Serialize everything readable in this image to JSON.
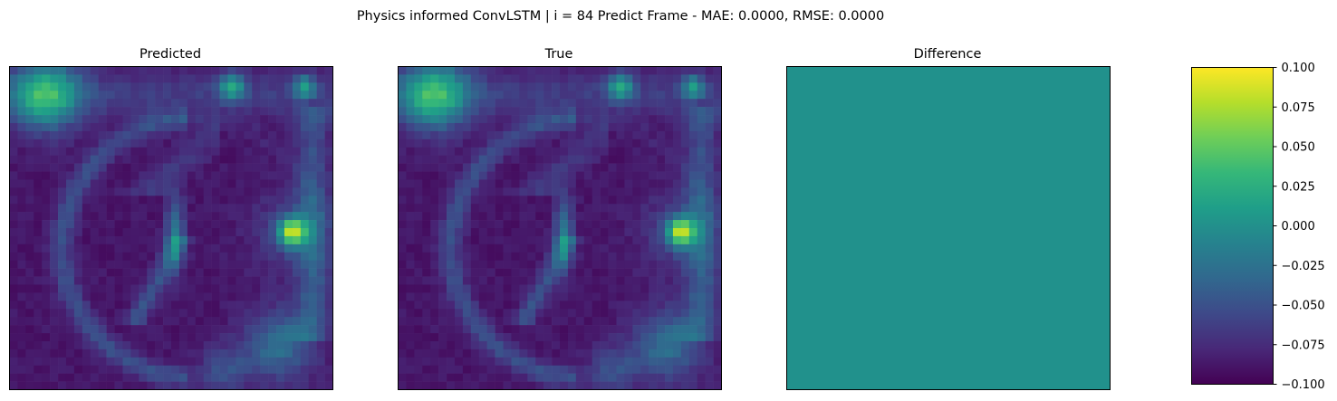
{
  "suptitle": "Physics informed ConvLSTM | i = 84 Predict Frame - MAE: 0.0000, RMSE: 0.0000",
  "chart_data": [
    {
      "type": "heatmap",
      "title": "Predicted",
      "grid_size": [
        40,
        40
      ],
      "colormap": "viridis",
      "description_note": "",
      "hotspots": [
        {
          "row": 2,
          "col": 3,
          "value": 0.75
        },
        {
          "row": 2,
          "col": 2,
          "value": 0.6
        },
        {
          "row": 3,
          "col": 2,
          "value": 0.55
        },
        {
          "row": 2,
          "col": 27,
          "value": 0.65
        },
        {
          "row": 2,
          "col": 36,
          "value": 0.6
        },
        {
          "row": 20,
          "col": 34,
          "value": 0.8
        },
        {
          "row": 20,
          "col": 35,
          "value": 0.7
        },
        {
          "row": 18,
          "col": 20,
          "value": 0.6
        },
        {
          "row": 21,
          "col": 20,
          "value": 0.55
        }
      ]
    },
    {
      "type": "heatmap",
      "title": "True",
      "grid_size": [
        40,
        40
      ],
      "colormap": "viridis",
      "hotspots": [
        {
          "row": 2,
          "col": 3,
          "value": 0.75
        },
        {
          "row": 2,
          "col": 2,
          "value": 0.6
        },
        {
          "row": 3,
          "col": 2,
          "value": 0.55
        },
        {
          "row": 2,
          "col": 27,
          "value": 0.65
        },
        {
          "row": 2,
          "col": 36,
          "value": 0.6
        },
        {
          "row": 20,
          "col": 34,
          "value": 0.8
        },
        {
          "row": 20,
          "col": 35,
          "value": 0.7
        },
        {
          "row": 18,
          "col": 20,
          "value": 0.6
        },
        {
          "row": 21,
          "col": 20,
          "value": 0.55
        }
      ]
    },
    {
      "type": "heatmap",
      "title": "Difference",
      "grid_size": [
        40,
        40
      ],
      "colormap": "viridis",
      "uniform_value": 0.0,
      "vmin": -0.1,
      "vmax": 0.1
    }
  ],
  "colorbar": {
    "vmin": -0.1,
    "vmax": 0.1,
    "ticks": [
      "0.100",
      "0.075",
      "0.050",
      "0.025",
      "0.000",
      "−0.025",
      "−0.050",
      "−0.075",
      "−0.100"
    ],
    "tick_values": [
      0.1,
      0.075,
      0.05,
      0.025,
      0.0,
      -0.025,
      -0.05,
      -0.075,
      -0.1
    ]
  },
  "colors": {
    "viridis": [
      "#440154",
      "#482878",
      "#3e4989",
      "#31688e",
      "#26828e",
      "#1f9e89",
      "#35b779",
      "#6ece58",
      "#b5de2b",
      "#fde725"
    ],
    "difference_fill": "#21918c"
  }
}
